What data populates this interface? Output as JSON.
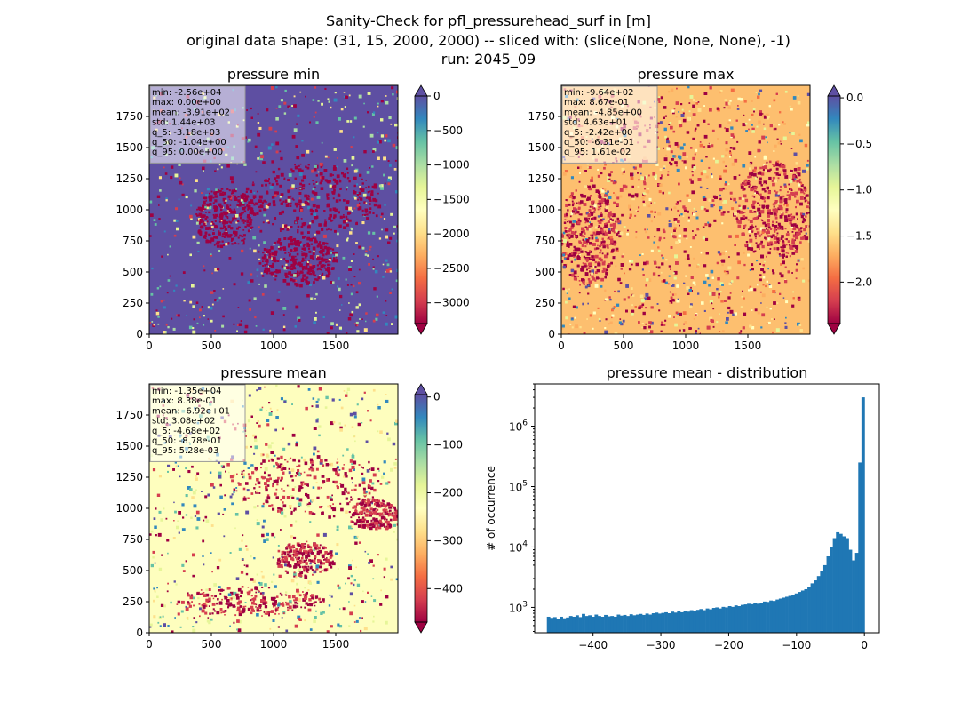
{
  "figure": {
    "suptitle_lines": [
      "Sanity-Check for pfl_pressurehead_surf in [m]",
      "original data shape: (31, 15, 2000, 2000) -- sliced with: (slice(None, None, None), -1)",
      "run: 2045_09"
    ]
  },
  "chart_data": [
    {
      "type": "heatmap",
      "title": "pressure min",
      "colormap": "Spectral",
      "x_ticks": [
        0,
        500,
        1000,
        1500
      ],
      "y_ticks": [
        0,
        250,
        500,
        750,
        1000,
        1250,
        1500,
        1750
      ],
      "xlim": [
        0,
        2000
      ],
      "ylim": [
        0,
        2000
      ],
      "colorbar": {
        "range": [
          -3300,
          0
        ],
        "ticks": [
          "0",
          "−500",
          "−1000",
          "−1500",
          "−2000",
          "−2500",
          "−3000"
        ],
        "tick_values": [
          0,
          -500,
          -1000,
          -1500,
          -2000,
          -2500,
          -3000
        ],
        "extend": "both",
        "extend_top_color": "#5e4fa2",
        "extend_bottom_color": "#9e0142"
      },
      "stats": [
        "min: -2.56e+04",
        "max: 0.00e+00",
        "mean: -3.91e+02",
        "std: 1.44e+03",
        "q_5: -3.18e+03",
        "q_50: -1.04e+00",
        "q_95: 0.00e+00"
      ],
      "background_color": "#5e4fa2"
    },
    {
      "type": "heatmap",
      "title": "pressure max",
      "colormap": "Spectral",
      "x_ticks": [
        0,
        500,
        1000,
        1500
      ],
      "y_ticks": [
        0,
        250,
        500,
        750,
        1000,
        1250,
        1500,
        1750
      ],
      "xlim": [
        0,
        2000
      ],
      "ylim": [
        0,
        2000
      ],
      "colorbar": {
        "range": [
          -2.45,
          0.02
        ],
        "ticks": [
          "0.0",
          "−0.5",
          "−1.0",
          "−1.5",
          "−2.0"
        ],
        "tick_values": [
          0.0,
          -0.5,
          -1.0,
          -1.5,
          -2.0
        ],
        "extend": "both",
        "extend_top_color": "#5e4fa2",
        "extend_bottom_color": "#9e0142"
      },
      "stats": [
        "min: -9.64e+02",
        "max: 8.67e-01",
        "mean: -4.85e+00",
        "std: 4.63e+01",
        "q_5: -2.42e+00",
        "q_50: -6.31e-01",
        "q_95: 1.61e-02"
      ],
      "background_color": "#fdbf6f"
    },
    {
      "type": "heatmap",
      "title": "pressure mean",
      "colormap": "Spectral",
      "x_ticks": [
        0,
        500,
        1000,
        1500
      ],
      "y_ticks": [
        0,
        250,
        500,
        750,
        1000,
        1250,
        1500,
        1750
      ],
      "xlim": [
        0,
        2000
      ],
      "ylim": [
        0,
        2000
      ],
      "colorbar": {
        "range": [
          -470,
          5
        ],
        "ticks": [
          "0",
          "−100",
          "−200",
          "−300",
          "−400"
        ],
        "tick_values": [
          0,
          -100,
          -200,
          -300,
          -400
        ],
        "extend": "both",
        "extend_top_color": "#5e4fa2",
        "extend_bottom_color": "#9e0142"
      },
      "stats": [
        "min: -1.35e+04",
        "max: 8.38e-01",
        "mean: -6.92e+01",
        "std: 3.08e+02",
        "q_5: -4.68e+02",
        "q_50: -8.78e-01",
        "q_95: 5.28e-03"
      ],
      "background_color": "#fefebe"
    },
    {
      "type": "bar",
      "title": "pressure mean - distribution",
      "xlabel": "",
      "ylabel": "# of occurrence",
      "y_scale": "log",
      "xlim": [
        -486,
        22
      ],
      "ylim": [
        380,
        5000000
      ],
      "x_ticks": [
        -400,
        -300,
        -200,
        -100,
        0
      ],
      "x_tick_labels": [
        "−400",
        "−300",
        "−200",
        "−100",
        "0"
      ],
      "y_ticks": [
        1000,
        10000,
        100000,
        1000000
      ],
      "bar_color": "#1f77b4",
      "bin_range": [
        -468,
        0
      ],
      "bin_count": 100,
      "x": [
        -465.7,
        -461.0,
        -456.3,
        -451.6,
        -446.9,
        -442.3,
        -437.6,
        -432.9,
        -428.2,
        -423.5,
        -418.8,
        -414.2,
        -409.5,
        -404.8,
        -400.1,
        -395.4,
        -390.7,
        -386.1,
        -381.4,
        -376.7,
        -372.0,
        -367.3,
        -362.6,
        -358.0,
        -353.3,
        -348.6,
        -343.9,
        -339.2,
        -334.5,
        -329.9,
        -325.2,
        -320.5,
        -315.8,
        -311.1,
        -306.4,
        -301.8,
        -297.1,
        -292.4,
        -287.7,
        -283.0,
        -278.3,
        -273.7,
        -269.0,
        -264.3,
        -259.6,
        -254.9,
        -250.2,
        -245.6,
        -240.9,
        -236.2,
        -231.5,
        -226.8,
        -222.1,
        -217.5,
        -212.8,
        -208.1,
        -203.4,
        -198.7,
        -194.0,
        -189.4,
        -184.7,
        -180.0,
        -175.3,
        -170.6,
        -165.9,
        -161.3,
        -156.6,
        -151.9,
        -147.2,
        -142.5,
        -137.8,
        -133.2,
        -128.5,
        -123.8,
        -119.1,
        -114.4,
        -109.7,
        -105.1,
        -100.4,
        -95.7,
        -91.0,
        -86.3,
        -81.6,
        -77.0,
        -72.3,
        -67.6,
        -62.9,
        -58.2,
        -53.5,
        -48.9,
        -44.2,
        -39.5,
        -34.8,
        -30.1,
        -25.4,
        -20.8,
        -16.1,
        -11.4,
        -6.7,
        -2.0
      ],
      "values": [
        700,
        670,
        690,
        650,
        700,
        660,
        680,
        720,
        700,
        740,
        690,
        780,
        720,
        740,
        700,
        760,
        720,
        700,
        750,
        710,
        720,
        700,
        760,
        730,
        750,
        720,
        770,
        740,
        760,
        780,
        750,
        790,
        760,
        800,
        820,
        790,
        810,
        830,
        800,
        850,
        820,
        860,
        830,
        870,
        850,
        900,
        870,
        910,
        940,
        900,
        960,
        930,
        980,
        1000,
        960,
        1020,
        1000,
        1050,
        1020,
        1080,
        1050,
        1100,
        1120,
        1150,
        1130,
        1180,
        1150,
        1200,
        1250,
        1230,
        1300,
        1280,
        1350,
        1400,
        1450,
        1500,
        1550,
        1600,
        1700,
        1800,
        1900,
        2000,
        2200,
        2500,
        2800,
        3300,
        4000,
        5000,
        7000,
        10000,
        14000,
        17500,
        16500,
        15000,
        14000,
        9000,
        6000,
        8000,
        250000,
        3000000
      ]
    }
  ]
}
